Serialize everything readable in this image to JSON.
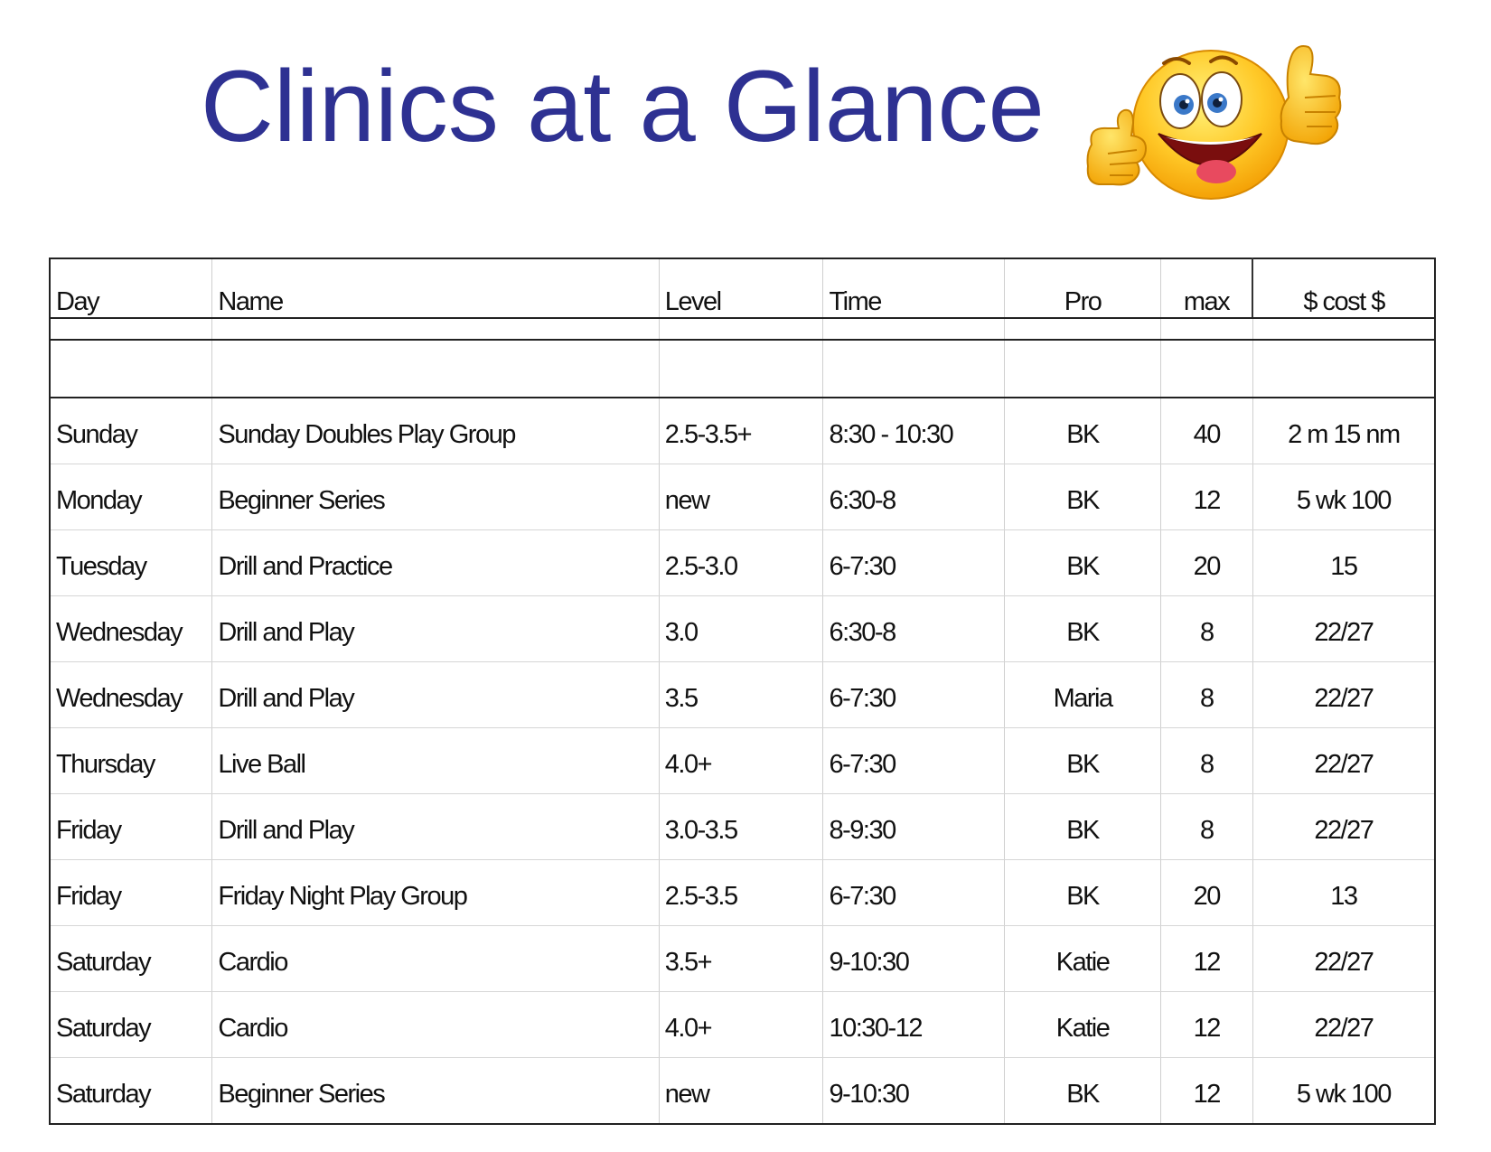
{
  "page": {
    "title": "Clinics at a Glance",
    "title_color": "#2E3192",
    "decoration_icon": "smiley-thumbs-up-icon"
  },
  "table": {
    "headers": {
      "day": "Day",
      "name": "Name",
      "level": "Level",
      "time": "Time",
      "pro": "Pro",
      "max": "max",
      "cost": "$ cost $"
    },
    "rows": [
      {
        "day": "Sunday",
        "name": "Sunday Doubles Play Group",
        "level": "2.5-3.5+",
        "time": "8:30 - 10:30",
        "pro": "BK",
        "max": "40",
        "cost": "2 m 15 nm"
      },
      {
        "day": "Monday",
        "name": "Beginner Series",
        "level": "new",
        "time": "6:30-8",
        "pro": "BK",
        "max": "12",
        "cost": "5 wk 100"
      },
      {
        "day": "Tuesday",
        "name": "Drill and Practice",
        "level": "2.5-3.0",
        "time": "6-7:30",
        "pro": "BK",
        "max": "20",
        "cost": "15"
      },
      {
        "day": "Wednesday",
        "name": "Drill and Play",
        "level": "3.0",
        "time": "6:30-8",
        "pro": "BK",
        "max": "8",
        "cost": "22/27"
      },
      {
        "day": "Wednesday",
        "name": "Drill and Play",
        "level": "3.5",
        "time": "6-7:30",
        "pro": "Maria",
        "max": "8",
        "cost": "22/27"
      },
      {
        "day": "Thursday",
        "name": "Live Ball",
        "level": "4.0+",
        "time": "6-7:30",
        "pro": "BK",
        "max": "8",
        "cost": "22/27"
      },
      {
        "day": "Friday",
        "name": "Drill and Play",
        "level": "3.0-3.5",
        "time": "8-9:30",
        "pro": "BK",
        "max": "8",
        "cost": "22/27"
      },
      {
        "day": "Friday",
        "name": "Friday Night Play Group",
        "level": "2.5-3.5",
        "time": "6-7:30",
        "pro": "BK",
        "max": "20",
        "cost": "13"
      },
      {
        "day": "Saturday",
        "name": "Cardio",
        "level": "3.5+",
        "time": "9-10:30",
        "pro": "Katie",
        "max": "12",
        "cost": "22/27"
      },
      {
        "day": "Saturday",
        "name": "Cardio",
        "level": "4.0+",
        "time": "10:30-12",
        "pro": "Katie",
        "max": "12",
        "cost": "22/27"
      },
      {
        "day": "Saturday",
        "name": "Beginner Series",
        "level": "new",
        "time": "9-10:30",
        "pro": "BK",
        "max": "12",
        "cost": "5 wk 100"
      }
    ]
  }
}
